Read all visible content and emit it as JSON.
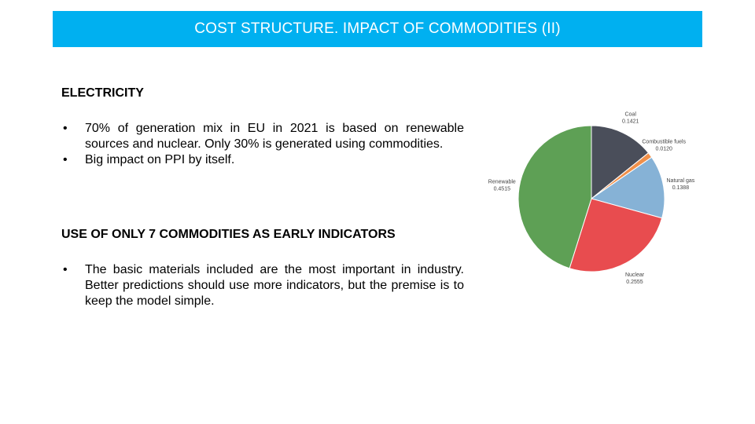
{
  "title": "COST STRUCTURE. IMPACT OF COMMODITIES (II)",
  "sections": [
    {
      "heading": "ELECTRICITY",
      "bullets": [
        "70% of generation mix in EU in 2021 is based on renewable sources and nuclear. Only 30% is generated using commodities.",
        "Big impact on PPI by itself."
      ]
    },
    {
      "heading": "USE OF ONLY 7 COMMODITIES AS EARLY INDICATORS",
      "bullets": [
        "The basic materials included are the most important in industry. Better predictions should use more indicators, but the premise is to keep the model simple."
      ]
    }
  ],
  "bullet_glyph": "•",
  "colors": {
    "title_bar": "#00b0f0"
  },
  "chart_data": {
    "type": "pie",
    "categories": [
      "Coal",
      "Combustible fuels",
      "Natural gas",
      "Nuclear",
      "Renewable"
    ],
    "values": [
      0.1421,
      0.012,
      0.1388,
      0.2555,
      0.4515
    ],
    "labels": [
      "0.1421",
      "0.0120",
      "0.1388",
      "0.2555",
      "0.4515"
    ],
    "colors": [
      "#4a4e5a",
      "#f0904a",
      "#86b2d6",
      "#e84c4f",
      "#5ea055"
    ],
    "title": ""
  }
}
